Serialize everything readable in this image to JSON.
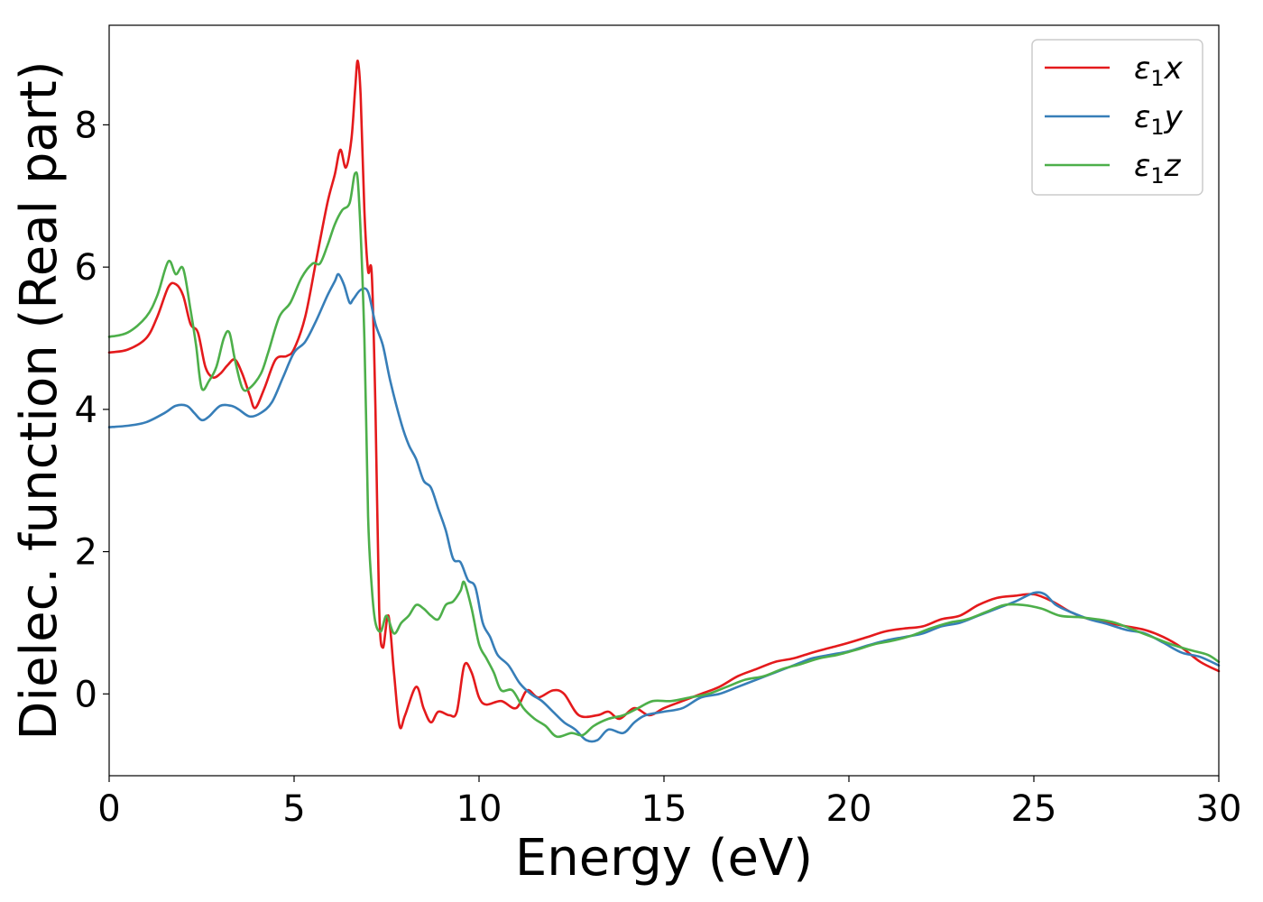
{
  "chart_data": {
    "type": "line",
    "xlabel": "Energy (eV)",
    "ylabel": "Dielec. function (Real part)",
    "xlim": [
      0,
      30
    ],
    "ylim": [
      -1.15,
      9.4
    ],
    "xticks": [
      0,
      5,
      10,
      15,
      20,
      25,
      30
    ],
    "yticks": [
      0,
      2,
      4,
      6,
      8
    ],
    "xtick_labels": [
      "0",
      "5",
      "10",
      "15",
      "20",
      "25",
      "30"
    ],
    "ytick_labels": [
      "0",
      "2",
      "4",
      "6",
      "8"
    ],
    "legend_position": "top-right",
    "grid": false,
    "series": [
      {
        "name": "ε1x",
        "legend_base": "ε",
        "legend_sub": "1",
        "legend_var": "x",
        "color": "#e41a1c",
        "points": [
          [
            0,
            4.8
          ],
          [
            0.5,
            4.84
          ],
          [
            1.0,
            5.0
          ],
          [
            1.3,
            5.3
          ],
          [
            1.6,
            5.72
          ],
          [
            1.8,
            5.76
          ],
          [
            2.0,
            5.6
          ],
          [
            2.2,
            5.2
          ],
          [
            2.4,
            5.08
          ],
          [
            2.6,
            4.6
          ],
          [
            2.8,
            4.45
          ],
          [
            3.0,
            4.5
          ],
          [
            3.2,
            4.62
          ],
          [
            3.4,
            4.7
          ],
          [
            3.6,
            4.5
          ],
          [
            3.8,
            4.2
          ],
          [
            3.95,
            4.02
          ],
          [
            4.2,
            4.3
          ],
          [
            4.5,
            4.7
          ],
          [
            4.8,
            4.75
          ],
          [
            5.0,
            4.85
          ],
          [
            5.3,
            5.3
          ],
          [
            5.6,
            6.1
          ],
          [
            5.9,
            6.9
          ],
          [
            6.1,
            7.3
          ],
          [
            6.25,
            7.65
          ],
          [
            6.4,
            7.4
          ],
          [
            6.55,
            7.8
          ],
          [
            6.65,
            8.5
          ],
          [
            6.72,
            8.9
          ],
          [
            6.8,
            8.4
          ],
          [
            6.9,
            6.8
          ],
          [
            7.0,
            5.95
          ],
          [
            7.1,
            5.9
          ],
          [
            7.2,
            4.0
          ],
          [
            7.3,
            1.2
          ],
          [
            7.4,
            0.65
          ],
          [
            7.55,
            1.1
          ],
          [
            7.7,
            0.3
          ],
          [
            7.85,
            -0.45
          ],
          [
            8.0,
            -0.3
          ],
          [
            8.3,
            0.1
          ],
          [
            8.5,
            -0.2
          ],
          [
            8.7,
            -0.4
          ],
          [
            8.9,
            -0.25
          ],
          [
            9.2,
            -0.3
          ],
          [
            9.4,
            -0.25
          ],
          [
            9.6,
            0.4
          ],
          [
            9.8,
            0.3
          ],
          [
            10.0,
            -0.05
          ],
          [
            10.2,
            -0.15
          ],
          [
            10.6,
            -0.1
          ],
          [
            11.0,
            -0.2
          ],
          [
            11.3,
            0.05
          ],
          [
            11.6,
            -0.05
          ],
          [
            12.0,
            0.05
          ],
          [
            12.3,
            0.0
          ],
          [
            12.7,
            -0.3
          ],
          [
            13.2,
            -0.3
          ],
          [
            13.5,
            -0.25
          ],
          [
            13.8,
            -0.35
          ],
          [
            14.2,
            -0.2
          ],
          [
            14.6,
            -0.3
          ],
          [
            15.0,
            -0.2
          ],
          [
            15.5,
            -0.1
          ],
          [
            16.0,
            0.0
          ],
          [
            16.5,
            0.1
          ],
          [
            17.0,
            0.25
          ],
          [
            17.5,
            0.35
          ],
          [
            18.0,
            0.45
          ],
          [
            18.5,
            0.5
          ],
          [
            19.0,
            0.58
          ],
          [
            19.5,
            0.65
          ],
          [
            20.0,
            0.72
          ],
          [
            20.5,
            0.8
          ],
          [
            21.0,
            0.88
          ],
          [
            21.5,
            0.92
          ],
          [
            22.0,
            0.95
          ],
          [
            22.5,
            1.05
          ],
          [
            23.0,
            1.1
          ],
          [
            23.5,
            1.25
          ],
          [
            24.0,
            1.35
          ],
          [
            24.5,
            1.38
          ],
          [
            25.0,
            1.4
          ],
          [
            25.5,
            1.3
          ],
          [
            26.0,
            1.15
          ],
          [
            26.5,
            1.05
          ],
          [
            27.0,
            1.0
          ],
          [
            27.5,
            0.95
          ],
          [
            28.0,
            0.9
          ],
          [
            28.5,
            0.8
          ],
          [
            29.0,
            0.65
          ],
          [
            29.5,
            0.45
          ],
          [
            30.0,
            0.32
          ]
        ]
      },
      {
        "name": "ε1y",
        "legend_base": "ε",
        "legend_sub": "1",
        "legend_var": "y",
        "color": "#377eb8",
        "points": [
          [
            0,
            3.75
          ],
          [
            0.5,
            3.77
          ],
          [
            1.0,
            3.82
          ],
          [
            1.5,
            3.95
          ],
          [
            1.8,
            4.05
          ],
          [
            2.1,
            4.05
          ],
          [
            2.3,
            3.95
          ],
          [
            2.5,
            3.85
          ],
          [
            2.7,
            3.9
          ],
          [
            3.0,
            4.05
          ],
          [
            3.3,
            4.05
          ],
          [
            3.5,
            4.0
          ],
          [
            3.8,
            3.9
          ],
          [
            4.1,
            3.95
          ],
          [
            4.4,
            4.1
          ],
          [
            4.7,
            4.45
          ],
          [
            5.0,
            4.8
          ],
          [
            5.3,
            4.95
          ],
          [
            5.6,
            5.25
          ],
          [
            5.9,
            5.6
          ],
          [
            6.1,
            5.8
          ],
          [
            6.2,
            5.9
          ],
          [
            6.35,
            5.75
          ],
          [
            6.5,
            5.5
          ],
          [
            6.6,
            5.55
          ],
          [
            6.8,
            5.68
          ],
          [
            7.0,
            5.65
          ],
          [
            7.2,
            5.2
          ],
          [
            7.4,
            4.9
          ],
          [
            7.6,
            4.4
          ],
          [
            7.9,
            3.8
          ],
          [
            8.1,
            3.5
          ],
          [
            8.3,
            3.3
          ],
          [
            8.5,
            3.0
          ],
          [
            8.7,
            2.9
          ],
          [
            8.9,
            2.6
          ],
          [
            9.1,
            2.3
          ],
          [
            9.3,
            1.9
          ],
          [
            9.5,
            1.85
          ],
          [
            9.7,
            1.6
          ],
          [
            9.9,
            1.5
          ],
          [
            10.1,
            1.0
          ],
          [
            10.3,
            0.8
          ],
          [
            10.5,
            0.55
          ],
          [
            10.8,
            0.4
          ],
          [
            11.1,
            0.15
          ],
          [
            11.4,
            0.0
          ],
          [
            11.7,
            -0.1
          ],
          [
            12.0,
            -0.25
          ],
          [
            12.3,
            -0.4
          ],
          [
            12.6,
            -0.5
          ],
          [
            12.9,
            -0.65
          ],
          [
            13.2,
            -0.65
          ],
          [
            13.5,
            -0.5
          ],
          [
            13.9,
            -0.55
          ],
          [
            14.2,
            -0.4
          ],
          [
            14.5,
            -0.3
          ],
          [
            15.0,
            -0.25
          ],
          [
            15.5,
            -0.2
          ],
          [
            16.0,
            -0.05
          ],
          [
            16.5,
            0.0
          ],
          [
            17.0,
            0.1
          ],
          [
            17.5,
            0.2
          ],
          [
            18.0,
            0.3
          ],
          [
            18.5,
            0.4
          ],
          [
            19.0,
            0.5
          ],
          [
            19.5,
            0.55
          ],
          [
            20.0,
            0.6
          ],
          [
            20.5,
            0.68
          ],
          [
            21.0,
            0.75
          ],
          [
            21.5,
            0.8
          ],
          [
            22.0,
            0.85
          ],
          [
            22.5,
            0.95
          ],
          [
            23.0,
            1.0
          ],
          [
            23.5,
            1.1
          ],
          [
            24.0,
            1.2
          ],
          [
            24.5,
            1.3
          ],
          [
            25.0,
            1.42
          ],
          [
            25.3,
            1.4
          ],
          [
            25.6,
            1.25
          ],
          [
            26.0,
            1.15
          ],
          [
            26.5,
            1.05
          ],
          [
            27.0,
            0.98
          ],
          [
            27.5,
            0.9
          ],
          [
            28.0,
            0.85
          ],
          [
            28.5,
            0.72
          ],
          [
            29.0,
            0.58
          ],
          [
            29.5,
            0.52
          ],
          [
            30.0,
            0.4
          ]
        ]
      },
      {
        "name": "ε1z",
        "legend_base": "ε",
        "legend_sub": "1",
        "legend_var": "z",
        "color": "#4daf4a",
        "points": [
          [
            0,
            5.02
          ],
          [
            0.5,
            5.08
          ],
          [
            1.0,
            5.3
          ],
          [
            1.3,
            5.6
          ],
          [
            1.6,
            6.08
          ],
          [
            1.8,
            5.9
          ],
          [
            2.0,
            5.98
          ],
          [
            2.2,
            5.4
          ],
          [
            2.35,
            4.9
          ],
          [
            2.5,
            4.3
          ],
          [
            2.7,
            4.4
          ],
          [
            2.9,
            4.6
          ],
          [
            3.1,
            5.0
          ],
          [
            3.25,
            5.08
          ],
          [
            3.4,
            4.7
          ],
          [
            3.6,
            4.3
          ],
          [
            3.8,
            4.3
          ],
          [
            4.1,
            4.5
          ],
          [
            4.3,
            4.8
          ],
          [
            4.6,
            5.3
          ],
          [
            4.9,
            5.5
          ],
          [
            5.2,
            5.85
          ],
          [
            5.5,
            6.05
          ],
          [
            5.7,
            6.05
          ],
          [
            5.9,
            6.3
          ],
          [
            6.1,
            6.6
          ],
          [
            6.3,
            6.8
          ],
          [
            6.5,
            6.9
          ],
          [
            6.65,
            7.32
          ],
          [
            6.75,
            7.0
          ],
          [
            6.9,
            5.0
          ],
          [
            7.0,
            2.5
          ],
          [
            7.1,
            1.5
          ],
          [
            7.2,
            1.0
          ],
          [
            7.35,
            0.88
          ],
          [
            7.5,
            1.1
          ],
          [
            7.7,
            0.85
          ],
          [
            7.9,
            1.0
          ],
          [
            8.1,
            1.1
          ],
          [
            8.3,
            1.25
          ],
          [
            8.5,
            1.2
          ],
          [
            8.7,
            1.1
          ],
          [
            8.9,
            1.05
          ],
          [
            9.1,
            1.25
          ],
          [
            9.3,
            1.3
          ],
          [
            9.5,
            1.45
          ],
          [
            9.6,
            1.57
          ],
          [
            9.8,
            1.2
          ],
          [
            10.0,
            0.7
          ],
          [
            10.2,
            0.5
          ],
          [
            10.4,
            0.3
          ],
          [
            10.6,
            0.05
          ],
          [
            10.9,
            0.05
          ],
          [
            11.2,
            -0.2
          ],
          [
            11.5,
            -0.35
          ],
          [
            11.8,
            -0.45
          ],
          [
            12.1,
            -0.6
          ],
          [
            12.5,
            -0.55
          ],
          [
            12.8,
            -0.58
          ],
          [
            13.1,
            -0.45
          ],
          [
            13.5,
            -0.35
          ],
          [
            13.9,
            -0.3
          ],
          [
            14.3,
            -0.2
          ],
          [
            14.7,
            -0.1
          ],
          [
            15.2,
            -0.1
          ],
          [
            15.7,
            -0.05
          ],
          [
            16.2,
            0.0
          ],
          [
            16.7,
            0.1
          ],
          [
            17.2,
            0.2
          ],
          [
            17.7,
            0.25
          ],
          [
            18.2,
            0.35
          ],
          [
            18.7,
            0.42
          ],
          [
            19.2,
            0.5
          ],
          [
            19.7,
            0.55
          ],
          [
            20.2,
            0.62
          ],
          [
            20.7,
            0.7
          ],
          [
            21.2,
            0.75
          ],
          [
            21.7,
            0.82
          ],
          [
            22.2,
            0.92
          ],
          [
            22.7,
            1.0
          ],
          [
            23.2,
            1.05
          ],
          [
            23.7,
            1.15
          ],
          [
            24.2,
            1.25
          ],
          [
            24.7,
            1.25
          ],
          [
            25.2,
            1.2
          ],
          [
            25.7,
            1.1
          ],
          [
            26.2,
            1.08
          ],
          [
            26.7,
            1.05
          ],
          [
            27.2,
            1.0
          ],
          [
            27.7,
            0.9
          ],
          [
            28.2,
            0.8
          ],
          [
            28.7,
            0.7
          ],
          [
            29.2,
            0.62
          ],
          [
            29.7,
            0.55
          ],
          [
            30.0,
            0.45
          ]
        ]
      }
    ]
  }
}
